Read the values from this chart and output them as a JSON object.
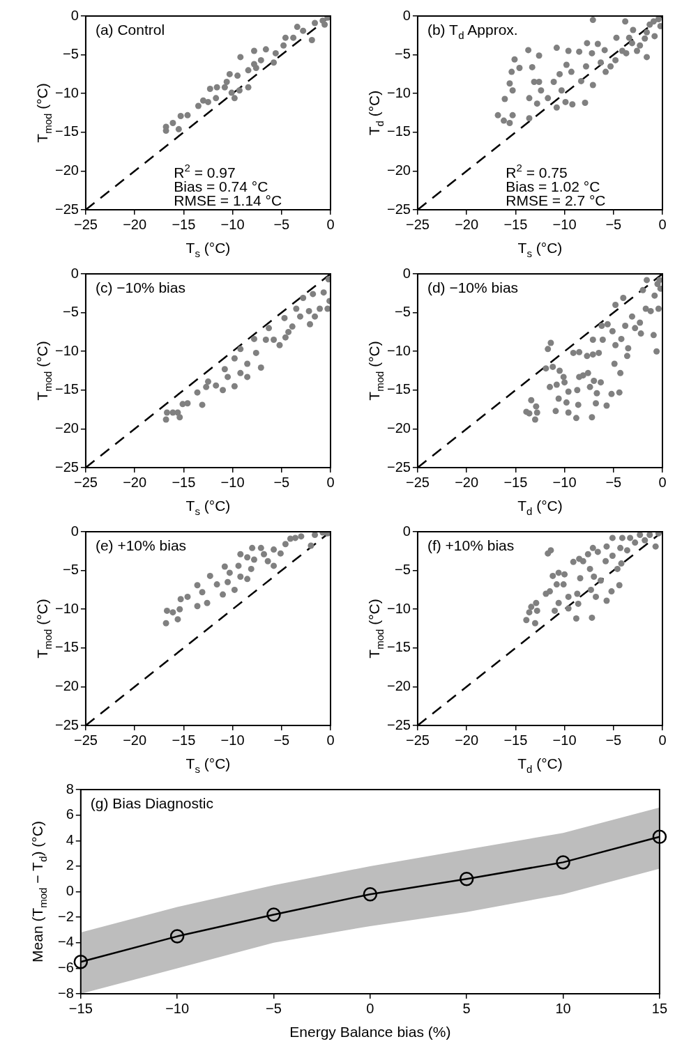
{
  "chart_data": [
    {
      "type": "scatter",
      "annotations": [
        "(a) Control",
        "R$^{2}$ = 0.97",
        "Bias = 0.74 °C",
        "RMSE = 1.14 °C"
      ],
      "xlabel": "T$_{s}$ (°C)",
      "ylabel": "T$_{mod}$ (°C)",
      "xlim": [
        -25,
        0
      ],
      "ylim": [
        -25,
        0
      ],
      "xticks": [
        -25,
        -20,
        -15,
        -10,
        -5,
        0
      ],
      "yticks": [
        -25,
        -20,
        -15,
        -10,
        -5,
        0
      ],
      "marker": "circle",
      "series": [
        {
          "color": "#808080",
          "x": [
            -16.8,
            -16.8,
            -16.1,
            -15.3,
            -14.6,
            -15.5,
            -13.5,
            -13,
            -12.5,
            -12.3,
            -11.7,
            -10.8,
            -10.3,
            -9.5,
            -9.8,
            -9.3,
            -9.2,
            -8.4,
            -8.4,
            -7.8,
            -7.8,
            -7.1,
            -6.6,
            -5.8,
            -5.6,
            -4.6,
            -4.8,
            -3.8,
            -3.4,
            -2.8,
            -1.9,
            -1.6,
            -0.8,
            -0.6,
            -0.3,
            -7.6,
            -10.6,
            -10.1,
            -11.6
          ],
          "values": [
            -14.8,
            -14.3,
            -13.8,
            -12.9,
            -12.8,
            -14.6,
            -11.6,
            -10.9,
            -11.1,
            -9.4,
            -10.6,
            -9.2,
            -7.5,
            -7.7,
            -10.6,
            -9.6,
            -5.3,
            -9.2,
            -7,
            -4.5,
            -6.2,
            -5.7,
            -4.3,
            -6,
            -4.8,
            -2.8,
            -3.8,
            -2.8,
            -1.4,
            -1.9,
            -3.1,
            -0.9,
            -0.6,
            -1.1,
            -0.2,
            -6.7,
            -8.5,
            -9.9,
            -9.2
          ]
        },
        {
          "type": "line",
          "color": "#000000",
          "line_style": "dashed",
          "marker": "none",
          "x": [
            -25,
            0
          ],
          "values": [
            -25,
            0
          ]
        }
      ]
    },
    {
      "type": "scatter",
      "annotations": [
        "(b) T$_{d}$ Approx.",
        "R$^{2}$ = 0.75",
        "Bias = 1.02 °C",
        "RMSE = 2.7 °C"
      ],
      "xlabel": "T$_{s}$ (°C)",
      "ylabel": "T$_{d}$ (°C)",
      "xlim": [
        -25,
        0
      ],
      "ylim": [
        -25,
        0
      ],
      "xticks": [
        -25,
        -20,
        -15,
        -10,
        -5,
        0
      ],
      "yticks": [
        -25,
        -20,
        -15,
        -10,
        -5,
        0
      ],
      "marker": "circle",
      "series": [
        {
          "color": "#808080",
          "x": [
            -16.8,
            -16.2,
            -15.6,
            -15.3,
            -16.1,
            -15.6,
            -15.3,
            -15.4,
            -15.1,
            -14.6,
            -13.7,
            -13.3,
            -13.1,
            -12.6,
            -12.6,
            -12.4,
            -13.6,
            -12.8,
            -13.6,
            -11.7,
            -11.1,
            -10.8,
            -10.8,
            -10.5,
            -10.3,
            -9.9,
            -9.8,
            -9.6,
            -9.3,
            -9.2,
            -8.5,
            -8.3,
            -7.9,
            -7.8,
            -7.7,
            -7.2,
            -7.1,
            -7.1,
            -6.6,
            -6.3,
            -5.9,
            -5.8,
            -5.3,
            -4.8,
            -4.7,
            -4.1,
            -3.8,
            -3.7,
            -3.4,
            -3.1,
            -3,
            -2.6,
            -2.3,
            -1.8,
            -1.6,
            -1.6,
            -0.8,
            -0.9,
            -0.4,
            -0.2,
            -1.3
          ],
          "values": [
            -12.8,
            -13.5,
            -13.8,
            -12.8,
            -10.7,
            -8.7,
            -9.6,
            -7.2,
            -5.6,
            -6.7,
            -4.4,
            -6.6,
            -8.5,
            -5.1,
            -8.5,
            -9.6,
            -10.6,
            -11.3,
            -13.2,
            -10.6,
            -8.5,
            -4.1,
            -11.8,
            -7.5,
            -9.6,
            -11.1,
            -6.3,
            -4.5,
            -7.2,
            -11.4,
            -4.6,
            -8.4,
            -11.2,
            -6.5,
            -3.5,
            -4.8,
            -0.5,
            -8.9,
            -3.6,
            -6,
            -4.4,
            -7.2,
            -6.5,
            -5.7,
            -2.8,
            -4.5,
            -0.7,
            -4.8,
            -2.8,
            -3.5,
            -1.8,
            -4.5,
            -3.8,
            -2.9,
            -5.3,
            -2.1,
            -2.6,
            -0.7,
            -0.4,
            -1.3,
            -1.1
          ]
        },
        {
          "type": "line",
          "color": "#000000",
          "line_style": "dashed",
          "marker": "none",
          "x": [
            -25,
            0
          ],
          "values": [
            -25,
            0
          ]
        }
      ]
    },
    {
      "type": "scatter",
      "annotations": [
        "(c) −10% bias"
      ],
      "xlabel": "T$_{s}$ (°C)",
      "ylabel": "T$_{mod}$ (°C)",
      "xlim": [
        -25,
        0
      ],
      "ylim": [
        -25,
        0
      ],
      "xticks": [
        -25,
        -20,
        -15,
        -10,
        -5,
        0
      ],
      "yticks": [
        -25,
        -20,
        -15,
        -10,
        -5,
        0
      ],
      "marker": "circle",
      "series": [
        {
          "color": "#808080",
          "x": [
            -16.8,
            -16.7,
            -16.1,
            -15.4,
            -15.6,
            -15.1,
            -14.6,
            -13.6,
            -13.1,
            -12.7,
            -12.5,
            -11.7,
            -11,
            -10.8,
            -10.5,
            -9.8,
            -9.8,
            -9.2,
            -9.2,
            -8.5,
            -8.5,
            -7.8,
            -7.6,
            -7.1,
            -6.6,
            -6.3,
            -5.8,
            -5.2,
            -4.7,
            -4.6,
            -3.9,
            -3.5,
            -3.1,
            -2.8,
            -2.2,
            -1.8,
            -2.1,
            -1.6,
            -1.1,
            -0.7,
            -0.2,
            -0.1,
            -0.3,
            -4.3
          ],
          "values": [
            -18.8,
            -17.9,
            -17.9,
            -18.5,
            -17.9,
            -16.8,
            -16.7,
            -15.3,
            -16.9,
            -14.6,
            -13.9,
            -14.4,
            -15,
            -12.3,
            -13.3,
            -14.5,
            -10.9,
            -9.7,
            -12.8,
            -13.3,
            -11.6,
            -8.4,
            -10.2,
            -12.1,
            -8.5,
            -7,
            -8.5,
            -9.2,
            -5.7,
            -8.2,
            -6.8,
            -4.5,
            -5.5,
            -3.1,
            -4.8,
            -2.6,
            -6.5,
            -5.5,
            -4.5,
            -2.4,
            -0.7,
            -3.5,
            -4.5,
            -7.5
          ]
        },
        {
          "type": "line",
          "color": "#000000",
          "line_style": "dashed",
          "marker": "none",
          "x": [
            -25,
            0
          ],
          "values": [
            -25,
            0
          ]
        }
      ]
    },
    {
      "type": "scatter",
      "annotations": [
        "(d) −10% bias"
      ],
      "xlabel": "T$_{d}$ (°C)",
      "ylabel": "T$_{mod}$ (°C)",
      "xlim": [
        -25,
        0
      ],
      "ylim": [
        -25,
        0
      ],
      "xticks": [
        -25,
        -20,
        -15,
        -10,
        -5,
        0
      ],
      "yticks": [
        -25,
        -20,
        -15,
        -10,
        -5,
        0
      ],
      "marker": "circle",
      "series": [
        {
          "color": "#808080",
          "x": [
            -13.9,
            -13.6,
            -13.4,
            -12.9,
            -12.8,
            -13,
            -11.7,
            -11.4,
            -11.9,
            -11.5,
            -11.2,
            -10.9,
            -10.8,
            -10.6,
            -10.5,
            -10.1,
            -10,
            -9.8,
            -9.6,
            -9.6,
            -9.1,
            -8.8,
            -8.7,
            -8.6,
            -8.5,
            -8.5,
            -8.1,
            -7.7,
            -7.6,
            -7.4,
            -7.2,
            -7.1,
            -7.1,
            -7,
            -6.8,
            -6.7,
            -6.3,
            -6.5,
            -6.2,
            -6.1,
            -5.7,
            -5.6,
            -5.2,
            -5.1,
            -4.9,
            -4.8,
            -4.8,
            -4.4,
            -4.3,
            -4.2,
            -4,
            -3.8,
            -3.6,
            -3.5,
            -3.1,
            -2.8,
            -2.3,
            -2.2,
            -1.7,
            -2,
            -1.6,
            -1.2,
            -0.9,
            -0.6,
            -0.8,
            -0.5,
            -0.3,
            -0.2,
            -0.4
          ],
          "values": [
            -17.8,
            -18,
            -16.3,
            -17.1,
            -17.9,
            -18.8,
            -9.7,
            -8.9,
            -12.2,
            -14.6,
            -12,
            -17.7,
            -14.3,
            -16.1,
            -12.5,
            -13.3,
            -14,
            -16.6,
            -15.2,
            -17.9,
            -10.2,
            -18.6,
            -15,
            -16.9,
            -13.3,
            -10.1,
            -13.1,
            -10.6,
            -12.8,
            -14.6,
            -18.5,
            -8.5,
            -10.4,
            -13.8,
            -16.7,
            -15.4,
            -14,
            -10.2,
            -6.7,
            -8.5,
            -17,
            -6.5,
            -15.5,
            -7.4,
            -11.6,
            -4,
            -9.2,
            -15.3,
            -12.8,
            -8.4,
            -3.1,
            -6.7,
            -10.6,
            -9.6,
            -5.5,
            -7,
            -6.3,
            -7.7,
            -4.5,
            -2.1,
            -0.8,
            -4.8,
            -7.9,
            -10,
            -2.8,
            -1.3,
            -0.8,
            -1.9,
            -4.5
          ]
        },
        {
          "type": "line",
          "color": "#000000",
          "line_style": "dashed",
          "marker": "none",
          "x": [
            -25,
            0
          ],
          "values": [
            -25,
            0
          ]
        }
      ]
    },
    {
      "type": "scatter",
      "annotations": [
        "(e) +10% bias"
      ],
      "xlabel": "T$_{s}$ (°C)",
      "ylabel": "T$_{mod}$ (°C)",
      "xlim": [
        -25,
        0
      ],
      "ylim": [
        -25,
        0
      ],
      "xticks": [
        -25,
        -20,
        -15,
        -10,
        -5,
        0
      ],
      "yticks": [
        -25,
        -20,
        -15,
        -10,
        -5,
        0
      ],
      "marker": "circle",
      "series": [
        {
          "color": "#808080",
          "x": [
            -16.8,
            -16.7,
            -16.1,
            -15.6,
            -15.4,
            -15.3,
            -14.6,
            -13.6,
            -13.6,
            -13.1,
            -12.6,
            -12.3,
            -11.6,
            -11,
            -10.8,
            -10.5,
            -10.3,
            -9.8,
            -9.4,
            -9.2,
            -8.5,
            -8.5,
            -8.1,
            -8,
            -7.8,
            -7.1,
            -6.8,
            -6.4,
            -5.8,
            -5.8,
            -5.1,
            -4.6,
            -4.1,
            -3.6,
            -3,
            -2,
            -1.6,
            -0.8,
            -0.3,
            -9.2
          ],
          "values": [
            -11.8,
            -10.2,
            -10.4,
            -11.3,
            -10,
            -8.7,
            -8.4,
            -6.9,
            -9.6,
            -7.8,
            -9.2,
            -5.7,
            -6.8,
            -8.1,
            -4.5,
            -6.5,
            -5.3,
            -7.5,
            -4.4,
            -5.8,
            -6.1,
            -3.3,
            -4.8,
            -2.1,
            -3.6,
            -2.1,
            -2.9,
            -3.8,
            -4.4,
            -2.3,
            -2.8,
            -1.6,
            -0.9,
            -0.8,
            -0.6,
            -1.8,
            -0.4,
            -0.1,
            -0.2,
            -2.9
          ]
        },
        {
          "type": "line",
          "color": "#000000",
          "line_style": "dashed",
          "marker": "none",
          "x": [
            -25,
            0
          ],
          "values": [
            -25,
            0
          ]
        }
      ]
    },
    {
      "type": "scatter",
      "annotations": [
        "(f) +10% bias"
      ],
      "xlabel": "T$_{d}$ (°C)",
      "ylabel": "T$_{mod}$ (°C)",
      "xlim": [
        -25,
        0
      ],
      "ylim": [
        -25,
        0
      ],
      "xticks": [
        -25,
        -20,
        -15,
        -10,
        -5,
        0
      ],
      "yticks": [
        -25,
        -20,
        -15,
        -10,
        -5,
        0
      ],
      "marker": "circle",
      "series": [
        {
          "color": "#808080",
          "x": [
            -13.9,
            -13.6,
            -13.4,
            -13,
            -12.9,
            -12.8,
            -11.9,
            -11.7,
            -11.4,
            -11.5,
            -11.2,
            -11,
            -10.8,
            -10.6,
            -10.6,
            -10.1,
            -10,
            -9.6,
            -9.6,
            -9.1,
            -8.8,
            -8.7,
            -8.6,
            -8.5,
            -8.4,
            -8.1,
            -7.6,
            -7.4,
            -7.3,
            -7.2,
            -7.1,
            -7,
            -6.8,
            -6.6,
            -6.3,
            -5.8,
            -5.7,
            -5.7,
            -5.2,
            -5.1,
            -5.1,
            -4.6,
            -4.4,
            -4.3,
            -4.2,
            -4.1,
            -3.6,
            -3.3,
            -2.8,
            -2.3,
            -1.8,
            -1.3,
            -0.7,
            -0.4
          ],
          "values": [
            -11.4,
            -10.4,
            -9.7,
            -11.8,
            -9.2,
            -10.2,
            -8,
            -2.8,
            -2.4,
            -7.7,
            -5.7,
            -10.2,
            -6.8,
            -9.2,
            -5.3,
            -6.8,
            -5.5,
            -8.4,
            -9.9,
            -3.9,
            -11.2,
            -8,
            -9.3,
            -3.5,
            -6,
            -3.8,
            -2.9,
            -4.8,
            -7.5,
            -11.1,
            -2.1,
            -5.8,
            -8.4,
            -2.6,
            -6.3,
            -3.8,
            -8.9,
            -1.9,
            -7.7,
            -3.1,
            -0.8,
            -4.8,
            -6.9,
            -2.1,
            -4.1,
            -0.8,
            -2.4,
            -0.8,
            -1.4,
            -0.4,
            -1.1,
            -0.4,
            -1.9,
            -0.2
          ]
        },
        {
          "type": "line",
          "color": "#000000",
          "line_style": "dashed",
          "marker": "none",
          "x": [
            -25,
            0
          ],
          "values": [
            -25,
            0
          ]
        }
      ]
    },
    {
      "type": "line",
      "annotations": [
        "(g) Bias Diagnostic"
      ],
      "xlabel": "Energy Balance bias (%)",
      "ylabel": "Mean (T$_{mod}$ − T$_{d}$) (°C)",
      "xlim": [
        -15,
        15
      ],
      "ylim": [
        -8,
        8
      ],
      "xticks": [
        -15,
        -10,
        -5,
        0,
        5,
        10,
        15
      ],
      "yticks": [
        -8,
        -6,
        -4,
        -2,
        0,
        2,
        4,
        6,
        8
      ],
      "marker": "circle",
      "x": [
        -15,
        -10,
        -5,
        0,
        5,
        10,
        15
      ],
      "series": [
        {
          "color": "#000000",
          "values": [
            -5.5,
            -3.5,
            -1.8,
            -0.2,
            1.0,
            2.3,
            4.3
          ],
          "lower": [
            -8,
            -6.0,
            -4.0,
            -2.7,
            -1.6,
            -0.2,
            1.8
          ],
          "upper": [
            -3.2,
            -1.2,
            0.5,
            2.0,
            3.3,
            4.6,
            6.6
          ]
        }
      ]
    }
  ]
}
